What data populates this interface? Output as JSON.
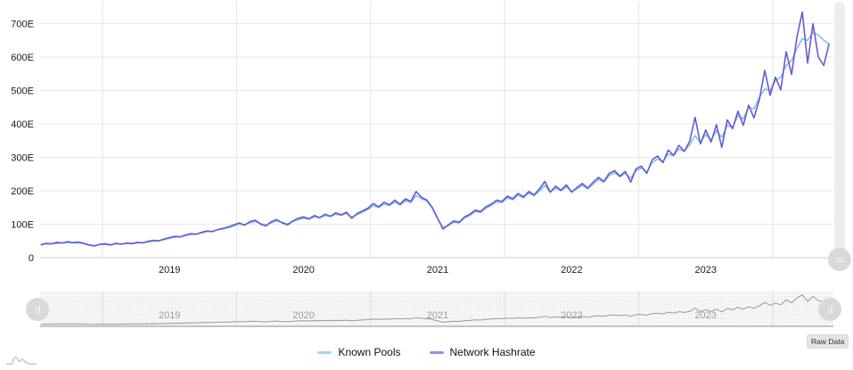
{
  "chart_data": {
    "type": "line",
    "title": "",
    "xlabel": "",
    "ylabel": "",
    "xlim": [
      2018.53,
      2024.45
    ],
    "ylim": [
      0,
      750
    ],
    "grid": true,
    "legend_position": "bottom",
    "x_start": 2018.54,
    "x_step": 0.04,
    "x_axis": {
      "tick_labels": [
        "2019",
        "2020",
        "2021",
        "2022",
        "2023"
      ],
      "gridline_years": [
        2019,
        2020,
        2021,
        2022,
        2023,
        2024
      ]
    },
    "y_axis": {
      "tick_labels": [
        "0",
        "100E",
        "200E",
        "300E",
        "400E",
        "500E",
        "600E",
        "700E"
      ],
      "tick_values": [
        0,
        100,
        200,
        300,
        400,
        500,
        600,
        700
      ],
      "unit": "EH/s"
    },
    "series": [
      {
        "name": "Known Pools",
        "color": "#7CC4E8",
        "legend_color": "#A6D6EE",
        "values": [
          40,
          41,
          42,
          43,
          44,
          45,
          44,
          44,
          42,
          38,
          36,
          39,
          40,
          39,
          41,
          41,
          42,
          43,
          44,
          45,
          47,
          49,
          51,
          54,
          58,
          61,
          63,
          66,
          69,
          71,
          74,
          78,
          79,
          83,
          86,
          90,
          95,
          100,
          99,
          104,
          108,
          102,
          98,
          104,
          110,
          106,
          101,
          108,
          114,
          118,
          115,
          122,
          119,
          126,
          123,
          130,
          127,
          132,
          121,
          129,
          136,
          144,
          155,
          150,
          160,
          156,
          166,
          158,
          170,
          165,
          186,
          176,
          170,
          148,
          116,
          90,
          96,
          106,
          104,
          118,
          126,
          138,
          135,
          148,
          156,
          167,
          165,
          179,
          173,
          187,
          179,
          193,
          185,
          200,
          216,
          196,
          208,
          200,
          212,
          198,
          206,
          216,
          206,
          220,
          234,
          226,
          246,
          254,
          242,
          252,
          238,
          260,
          268,
          256,
          284,
          295,
          288,
          310,
          305,
          325,
          318,
          338,
          365,
          345,
          368,
          352,
          380,
          360,
          395,
          390,
          425,
          415,
          450,
          445,
          480,
          505,
          500,
          530,
          540,
          575,
          590,
          625,
          655,
          650,
          675,
          665,
          650,
          640
        ]
      },
      {
        "name": "Network Hashrate",
        "color": "#6A59D1",
        "legend_color": "#9B8EE4",
        "values": [
          38,
          43,
          41,
          46,
          44,
          48,
          45,
          47,
          43,
          38,
          35,
          40,
          42,
          38,
          43,
          40,
          44,
          42,
          46,
          44,
          49,
          52,
          50,
          56,
          60,
          64,
          62,
          68,
          72,
          70,
          76,
          80,
          78,
          84,
          88,
          92,
          98,
          104,
          97,
          108,
          112,
          100,
          95,
          108,
          114,
          104,
          98,
          110,
          118,
          122,
          116,
          126,
          120,
          130,
          124,
          134,
          128,
          136,
          118,
          132,
          140,
          148,
          162,
          152,
          166,
          158,
          172,
          160,
          176,
          168,
          198,
          180,
          172,
          150,
          118,
          86,
          98,
          110,
          106,
          122,
          130,
          142,
          138,
          152,
          160,
          172,
          168,
          184,
          176,
          192,
          182,
          198,
          188,
          206,
          228,
          196,
          214,
          202,
          218,
          196,
          210,
          222,
          208,
          226,
          240,
          228,
          252,
          260,
          244,
          258,
          226,
          266,
          274,
          252,
          292,
          304,
          284,
          322,
          306,
          336,
          318,
          348,
          420,
          340,
          382,
          346,
          398,
          330,
          412,
          386,
          438,
          396,
          456,
          418,
          474,
          560,
          486,
          540,
          502,
          616,
          548,
          660,
          735,
          582,
          700,
          600,
          575,
          640
        ]
      }
    ]
  },
  "navigator": {
    "year_labels": [
      "2019",
      "2020",
      "2021",
      "2022",
      "2023"
    ],
    "source_series": "Network Hashrate",
    "line_color": "#9a9a9a"
  },
  "buttons": {
    "raw_data": "Raw Data"
  },
  "colors": {
    "grid": "#e8e8e8",
    "vgrid": "#e3e3e3",
    "axis_line": "#cccccc",
    "label": "#1a1a1a",
    "nav_label": "#9b9b9b",
    "nav_grid": "#dcdcdc",
    "nav_axis": "#b3b3b3",
    "nav_bg": "#f6f6f6",
    "nav_dot": "#e2e2e2",
    "logo": "#cdcdcd"
  }
}
